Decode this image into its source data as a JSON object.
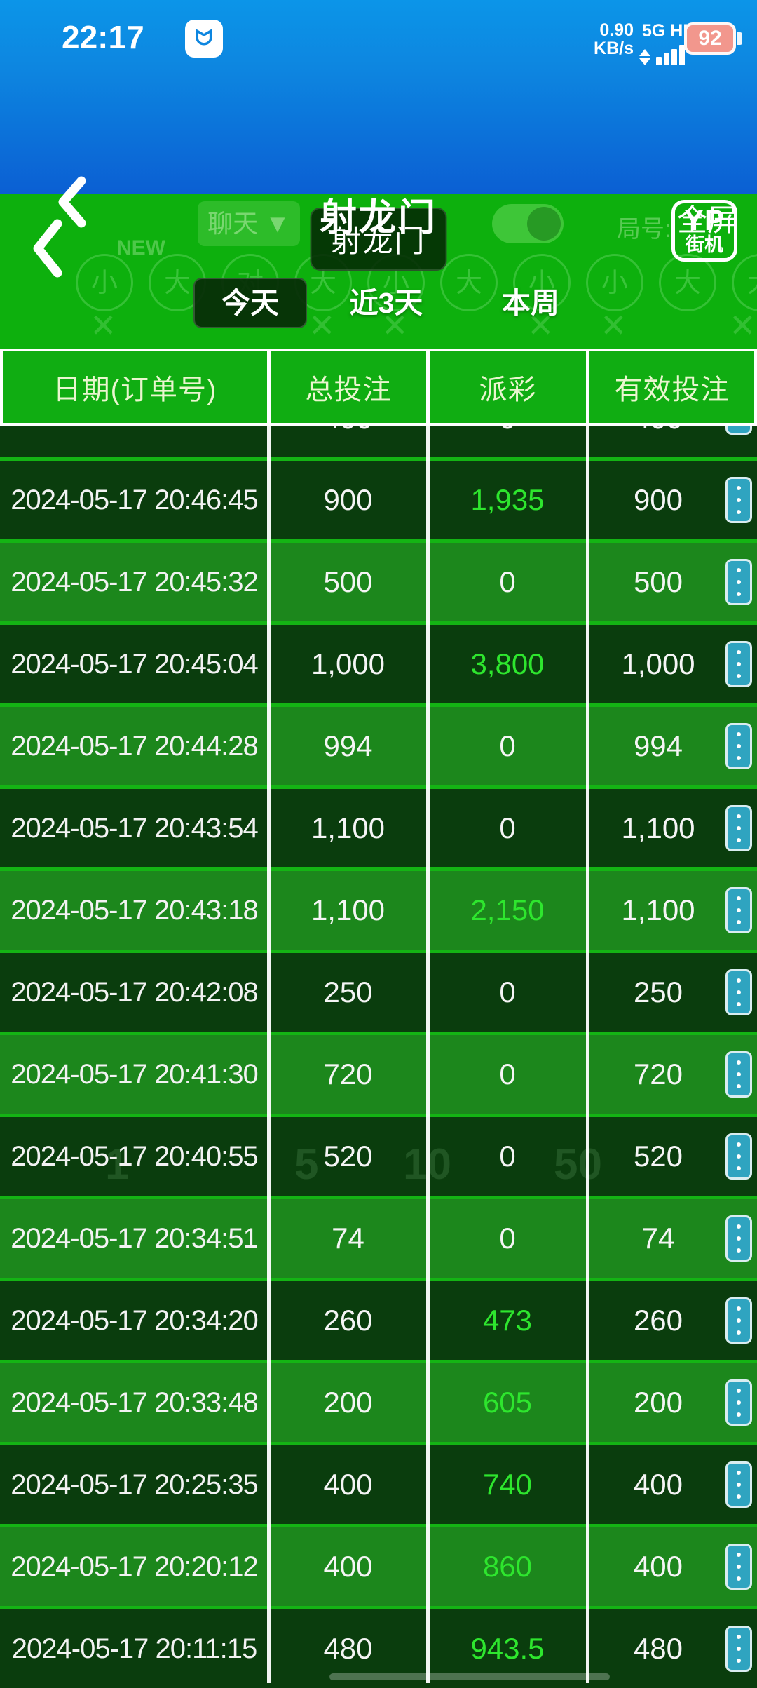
{
  "status_bar": {
    "time": "22:17",
    "speed_value": "0.90",
    "speed_unit": "KB/s",
    "network": "5G HD",
    "battery_percent": "92"
  },
  "header": {
    "title": "射龙门",
    "fullscreen_label": "全屏"
  },
  "game_overlay": {
    "room_badge": "射龙门",
    "logo_line1": "YP",
    "logo_line2": "街机",
    "faint_chat_label": "聊天 ▼",
    "faint_round_label": "局号:",
    "faint_new_label": "NEW",
    "faint_circle_symbols": [
      "小",
      "大",
      "对",
      "大",
      "小",
      "大",
      "小",
      "小",
      "大",
      "大"
    ],
    "faint_chip_values": [
      "1",
      "5",
      "10",
      "50"
    ]
  },
  "filter_tabs": [
    {
      "label": "今天",
      "active": true
    },
    {
      "label": "近3天",
      "active": false
    },
    {
      "label": "本周",
      "active": false
    }
  ],
  "table": {
    "columns": [
      "日期(订单号)",
      "总投注",
      "派彩",
      "有效投注"
    ],
    "partial_row": {
      "bet": "400",
      "payout": "0",
      "valid": "400"
    },
    "rows": [
      {
        "date": "2024-05-17 20:46:45",
        "bet": "900",
        "payout": "1,935",
        "valid": "900"
      },
      {
        "date": "2024-05-17 20:45:32",
        "bet": "500",
        "payout": "0",
        "valid": "500"
      },
      {
        "date": "2024-05-17 20:45:04",
        "bet": "1,000",
        "payout": "3,800",
        "valid": "1,000"
      },
      {
        "date": "2024-05-17 20:44:28",
        "bet": "994",
        "payout": "0",
        "valid": "994"
      },
      {
        "date": "2024-05-17 20:43:54",
        "bet": "1,100",
        "payout": "0",
        "valid": "1,100"
      },
      {
        "date": "2024-05-17 20:43:18",
        "bet": "1,100",
        "payout": "2,150",
        "valid": "1,100"
      },
      {
        "date": "2024-05-17 20:42:08",
        "bet": "250",
        "payout": "0",
        "valid": "250"
      },
      {
        "date": "2024-05-17 20:41:30",
        "bet": "720",
        "payout": "0",
        "valid": "720"
      },
      {
        "date": "2024-05-17 20:40:55",
        "bet": "520",
        "payout": "0",
        "valid": "520"
      },
      {
        "date": "2024-05-17 20:34:51",
        "bet": "74",
        "payout": "0",
        "valid": "74"
      },
      {
        "date": "2024-05-17 20:34:20",
        "bet": "260",
        "payout": "473",
        "valid": "260"
      },
      {
        "date": "2024-05-17 20:33:48",
        "bet": "200",
        "payout": "605",
        "valid": "200"
      },
      {
        "date": "2024-05-17 20:25:35",
        "bet": "400",
        "payout": "740",
        "valid": "400"
      },
      {
        "date": "2024-05-17 20:20:12",
        "bet": "400",
        "payout": "860",
        "valid": "400"
      },
      {
        "date": "2024-05-17 20:11:15",
        "bet": "480",
        "payout": "943.5",
        "valid": "480"
      }
    ]
  },
  "colors": {
    "status_blue_top": "#0c95e8",
    "header_blue_bottom": "#0b5fd3",
    "panel_green": "#0db00d",
    "table_gap_green": "#14b414",
    "header_cell_green": "#10ad12",
    "row_dark": "#0a3d0d",
    "row_medium": "#1c871c",
    "payout_win_green": "#2ee62e",
    "action_button_teal": "#2fa4c0",
    "battery_fill": "#f2978d",
    "divider_white": "#ffffff"
  }
}
